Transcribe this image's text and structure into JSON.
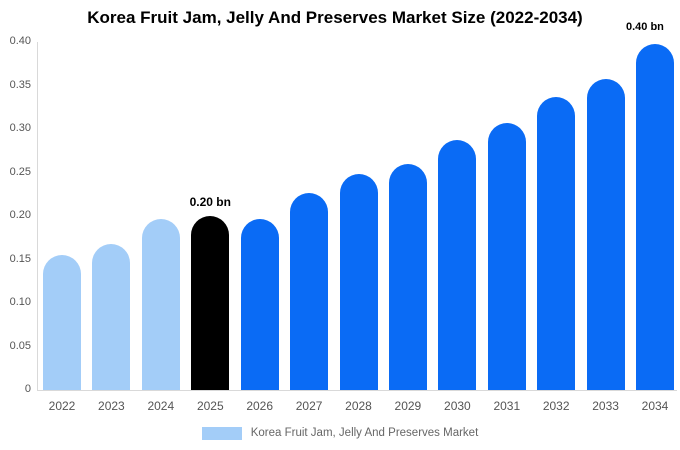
{
  "title": "Korea Fruit Jam, Jelly And Preserves Market Size (2022-2034)",
  "legend": {
    "label": "Korea Fruit Jam, Jelly And Preserves Market",
    "swatch_color": "#a3cdf8"
  },
  "chart_data": {
    "type": "bar",
    "title": "Korea Fruit Jam, Jelly And Preserves Market Size (2022-2034)",
    "unit": "bn",
    "categories": [
      "2022",
      "2023",
      "2024",
      "2025",
      "2026",
      "2027",
      "2028",
      "2029",
      "2030",
      "2031",
      "2032",
      "2033",
      "2034"
    ],
    "values": [
      0.155,
      0.168,
      0.197,
      0.2,
      0.197,
      0.227,
      0.248,
      0.26,
      0.287,
      0.307,
      0.337,
      0.358,
      0.398
    ],
    "bar_colors": [
      "#a3cdf8",
      "#a3cdf8",
      "#a3cdf8",
      "#000000",
      "#0a6bf5",
      "#0a6bf5",
      "#0a6bf5",
      "#0a6bf5",
      "#0a6bf5",
      "#0a6bf5",
      "#0a6bf5",
      "#0a6bf5",
      "#0a6bf5"
    ],
    "color_roles": {
      "historical": "#a3cdf8",
      "base_year": "#000000",
      "forecast": "#0a6bf5"
    },
    "annotations": {
      "base_year": {
        "category": "2025",
        "text": "0.20 bn"
      },
      "final_year": {
        "category": "2034",
        "text": "0.40 bn"
      }
    },
    "y_axis": {
      "ticks": [
        "0.40",
        "0.35",
        "0.30",
        "0.25",
        "0.20",
        "0.15",
        "0.10",
        "0.05",
        "0"
      ],
      "range": [
        0,
        0.4
      ],
      "gridlines": false
    },
    "xlabel": "",
    "ylabel": "",
    "legend_position": "bottom"
  }
}
